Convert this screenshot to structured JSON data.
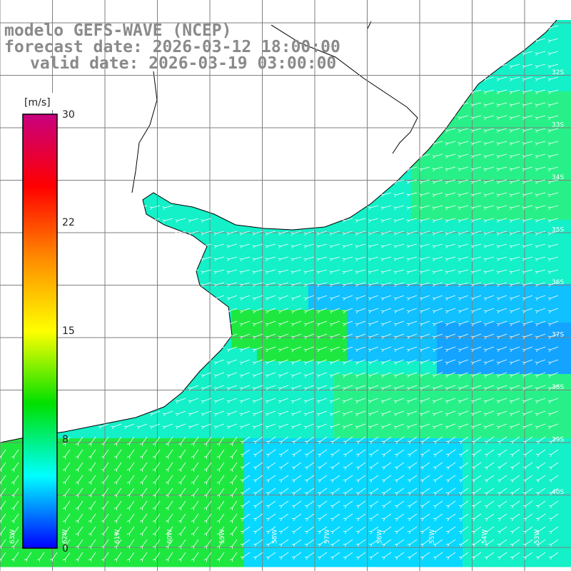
{
  "header": {
    "line1": "modelo GEFS-WAVE (NCEP)",
    "line2": "forecast date: 2026-03-12 18:00:00",
    "line3": "valid date: 2026-03-19 03:00:00"
  },
  "colorbar": {
    "unit": "[m/s]",
    "ticks": [
      "30",
      "22",
      "15",
      "8",
      "0"
    ],
    "stops": [
      "#c8007f",
      "#ff0000",
      "#ff8c00",
      "#ffff00",
      "#00e000",
      "#00ffff",
      "#0000ff"
    ]
  },
  "lat_labels": [
    "32S",
    "33S",
    "34S",
    "35S",
    "36S",
    "37S",
    "38S",
    "39S",
    "40S"
  ],
  "lon_labels": [
    "63W",
    "62W",
    "61W",
    "60W",
    "59W",
    "58W",
    "57W",
    "56W",
    "55W",
    "54W",
    "53W"
  ],
  "colors": {
    "land": "#ffffff",
    "coast": "#000000",
    "grid": "#7f7f7f",
    "arrow": "#ffffff"
  },
  "wind": {
    "units": "m/s",
    "field_description_zones": [
      {
        "zone": "nearshore-south",
        "speed_approx": 12
      },
      {
        "zone": "offshore-east",
        "speed_approx": 7
      }
    ]
  }
}
